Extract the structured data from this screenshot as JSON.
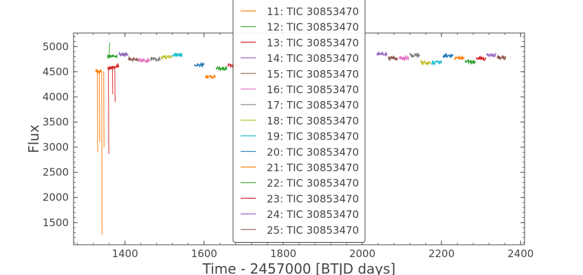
{
  "chart_data": {
    "type": "line",
    "title": "",
    "xlabel": "Time - 2457000 [BTJD days]",
    "ylabel": "Flux",
    "xlim": [
      1270,
      2410
    ],
    "ylim": [
      1060,
      5270
    ],
    "xticks": [
      1400,
      1600,
      1800,
      2000,
      2200,
      2400
    ],
    "xtick_labels": [
      "1400",
      "1600",
      "1800",
      "2000",
      "2200",
      "2400"
    ],
    "yticks": [
      1500,
      2000,
      2500,
      3000,
      3500,
      4000,
      4500,
      5000
    ],
    "ytick_labels": [
      "1500",
      "2000",
      "2500",
      "3000",
      "3500",
      "4000",
      "4500",
      "5000"
    ],
    "grid": false,
    "legend_position": "upper center",
    "series": [
      {
        "name": "11: TIC 30853470",
        "color": "#ff7f0e",
        "x": [
          1325,
          1340
        ],
        "y": [
          4510,
          4510
        ],
        "dips": [
          [
            1330,
            2900
          ],
          [
            1335,
            3100
          ],
          [
            1341,
            1260
          ],
          [
            1346,
            3000
          ]
        ]
      },
      {
        "name": "12: TIC 30853470",
        "color": "#2ca02c",
        "x": [
          1355,
          1380
        ],
        "y": [
          4810,
          4810
        ],
        "dips": [
          [
            1360,
            5080
          ]
        ]
      },
      {
        "name": "13: TIC 30853470",
        "color": "#d62728",
        "x": [
          1356,
          1385
        ],
        "y": [
          4560,
          4620
        ],
        "dips": [
          [
            1358,
            2870
          ],
          [
            1368,
            4050
          ],
          [
            1374,
            3900
          ]
        ]
      },
      {
        "name": "14: TIC 30853470",
        "color": "#9467bd",
        "x": [
          1385,
          1408
        ],
        "y": [
          4850,
          4850
        ]
      },
      {
        "name": "15: TIC 30853470",
        "color": "#8c564b",
        "x": [
          1409,
          1434
        ],
        "y": [
          4750,
          4750
        ]
      },
      {
        "name": "16: TIC 30853470",
        "color": "#e377c2",
        "x": [
          1436,
          1462
        ],
        "y": [
          4720,
          4720
        ]
      },
      {
        "name": "17: TIC 30853470",
        "color": "#7f7f7f",
        "x": [
          1465,
          1490
        ],
        "y": [
          4750,
          4750
        ]
      },
      {
        "name": "18: TIC 30853470",
        "color": "#bcbd22",
        "x": [
          1492,
          1518
        ],
        "y": [
          4790,
          4790
        ]
      },
      {
        "name": "19: TIC 30853470",
        "color": "#17becf",
        "x": [
          1520,
          1545
        ],
        "y": [
          4830,
          4830
        ]
      },
      {
        "name": "20: TIC 30853470",
        "color": "#1f77b4",
        "x": [
          1575,
          1600
        ],
        "y": [
          4640,
          4640
        ]
      },
      {
        "name": "21: TIC 30853470",
        "color": "#ff7f0e",
        "x": [
          1602,
          1628
        ],
        "y": [
          4400,
          4400
        ]
      },
      {
        "name": "22: TIC 30853470",
        "color": "#2ca02c",
        "x": [
          1630,
          1657
        ],
        "y": [
          4560,
          4560
        ]
      },
      {
        "name": "23: TIC 30853470",
        "color": "#d62728",
        "x": [
          1660,
          1685
        ],
        "y": [
          4630,
          4630
        ]
      },
      {
        "name": "24: TIC 30853470",
        "color": "#9467bd",
        "x": [
          2037,
          2062
        ],
        "y": [
          4860,
          4860
        ]
      },
      {
        "name": "25: TIC 30853470",
        "color": "#8c564b",
        "x": [
          2065,
          2090
        ],
        "y": [
          4770,
          4770
        ]
      },
      {
        "name": "",
        "color": "#e377c2",
        "x": [
          2092,
          2117
        ],
        "y": [
          4770,
          4770
        ]
      },
      {
        "name": "",
        "color": "#7f7f7f",
        "x": [
          2120,
          2145
        ],
        "y": [
          4830,
          4830
        ]
      },
      {
        "name": "",
        "color": "#bcbd22",
        "x": [
          2148,
          2173
        ],
        "y": [
          4680,
          4680
        ]
      },
      {
        "name": "",
        "color": "#17becf",
        "x": [
          2175,
          2200
        ],
        "y": [
          4680,
          4680
        ]
      },
      {
        "name": "",
        "color": "#1f77b4",
        "x": [
          2203,
          2230
        ],
        "y": [
          4820,
          4820
        ]
      },
      {
        "name": "",
        "color": "#ff7f0e",
        "x": [
          2232,
          2258
        ],
        "y": [
          4770,
          4770
        ]
      },
      {
        "name": "",
        "color": "#2ca02c",
        "x": [
          2260,
          2285
        ],
        "y": [
          4700,
          4700
        ]
      },
      {
        "name": "",
        "color": "#d62728",
        "x": [
          2288,
          2312
        ],
        "y": [
          4760,
          4760
        ]
      },
      {
        "name": "",
        "color": "#9467bd",
        "x": [
          2314,
          2338
        ],
        "y": [
          4840,
          4840
        ]
      },
      {
        "name": "",
        "color": "#8c564b",
        "x": [
          2340,
          2362
        ],
        "y": [
          4780,
          4780
        ]
      }
    ]
  }
}
